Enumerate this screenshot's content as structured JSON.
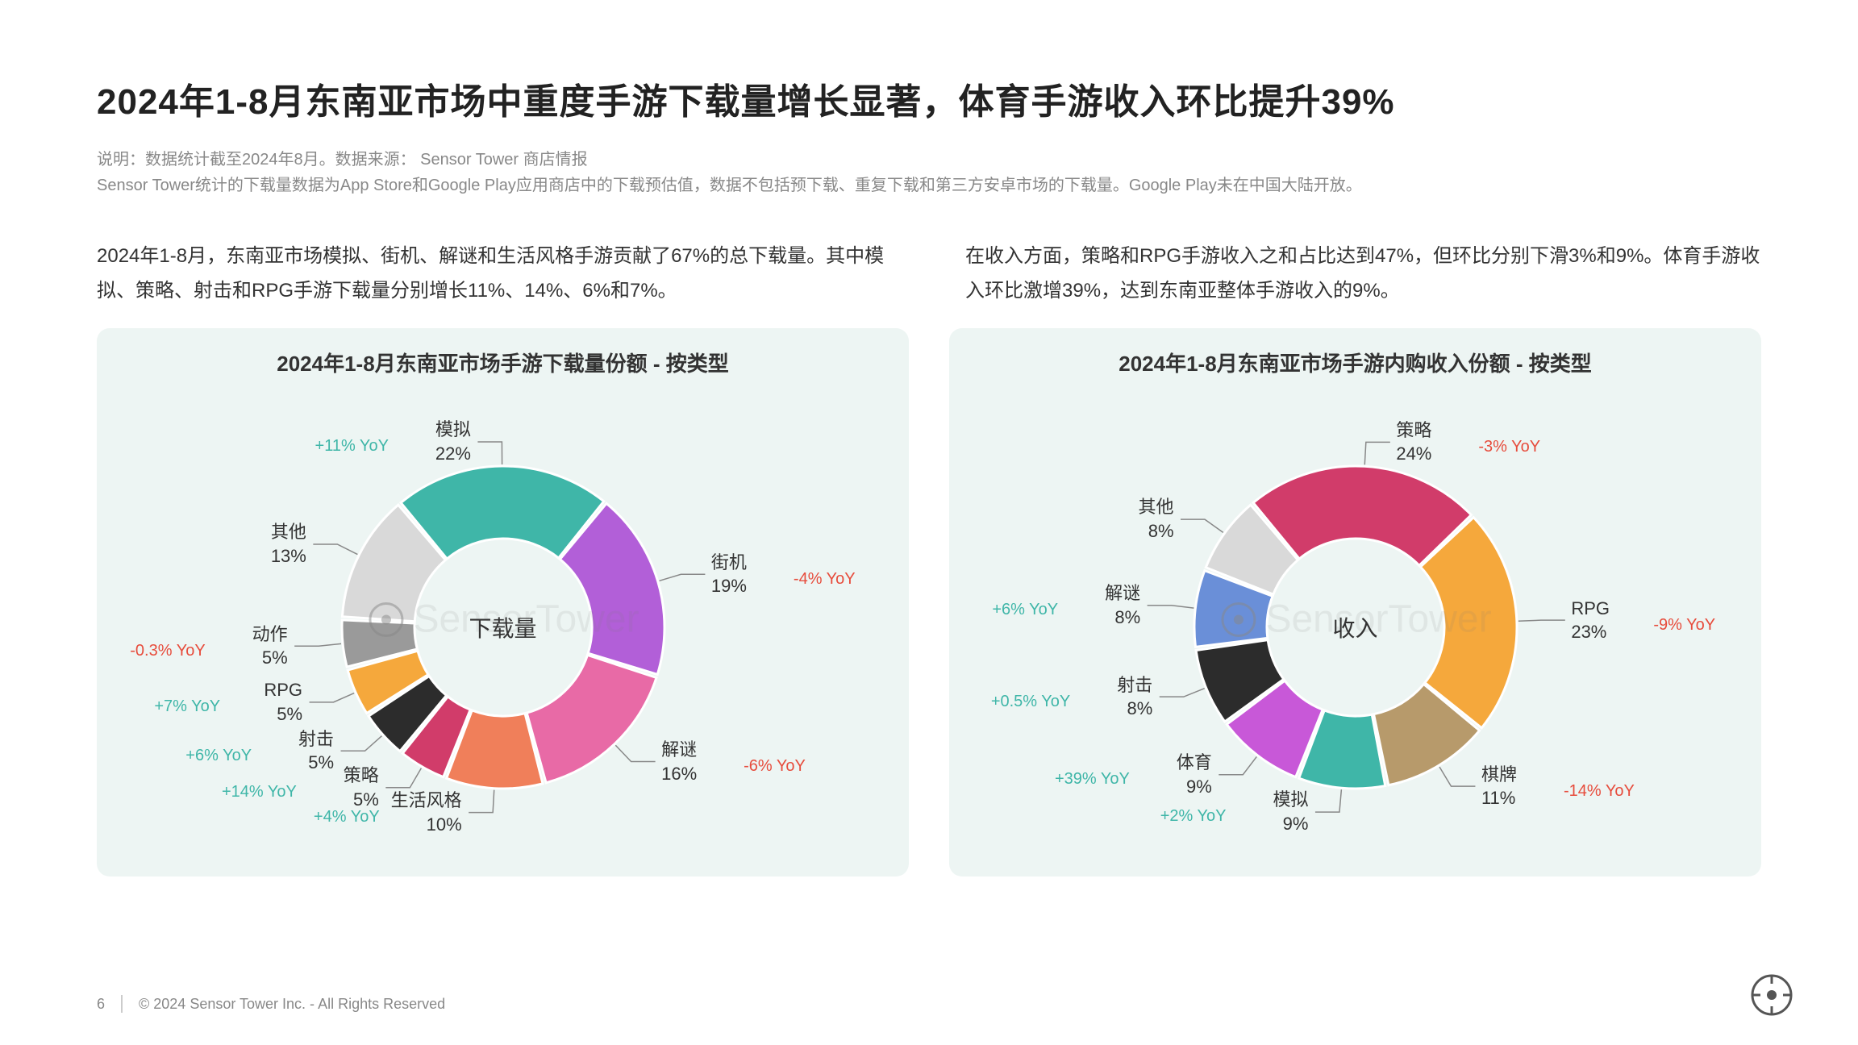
{
  "title": "2024年1-8月东南亚市场中重度手游下载量增长显著，体育手游收入环比提升39%",
  "subtitle_line1": "说明：数据统计截至2024年8月。数据来源： Sensor Tower 商店情报",
  "subtitle_line2": "Sensor Tower统计的下载量数据为App Store和Google Play应用商店中的下载预估值，数据不包括预下载、重复下载和第三方安卓市场的下载量。Google Play未在中国大陆开放。",
  "body_left": "2024年1-8月，东南亚市场模拟、街机、解谜和生活风格手游贡献了67%的总下载量。其中模拟、策略、射击和RPG手游下载量分别增长11%、14%、6%和7%。",
  "body_right": "在收入方面，策略和RPG手游收入之和占比达到47%，但环比分别下滑3%和9%。体育手游收入环比激增39%，达到东南亚整体手游收入的9%。",
  "watermark_text": "SensorTower",
  "page_number": "6",
  "copyright": "© 2024 Sensor Tower Inc. - All Rights Reserved",
  "chart1": {
    "title": "2024年1-8月东南亚市场手游下载量份额 - 按类型",
    "center_label": "下载量",
    "inner_radius": 110,
    "outer_radius": 200,
    "slices": [
      {
        "name": "模拟",
        "pct": 22,
        "color": "#3fb6a8",
        "yoy": "+11% YoY",
        "yoy_sign": "pos"
      },
      {
        "name": "街机",
        "pct": 19,
        "color": "#b25fd8",
        "yoy": "-4% YoY",
        "yoy_sign": "neg"
      },
      {
        "name": "解谜",
        "pct": 16,
        "color": "#e86aa6",
        "yoy": "-6% YoY",
        "yoy_sign": "neg"
      },
      {
        "name": "生活风格",
        "pct": 10,
        "color": "#f07f5a",
        "yoy": "+4% YoY",
        "yoy_sign": "pos"
      },
      {
        "name": "策略",
        "pct": 5,
        "color": "#d13c6a",
        "yoy": "+14% YoY",
        "yoy_sign": "pos"
      },
      {
        "name": "射击",
        "pct": 5,
        "color": "#2c2c2c",
        "yoy": "+6% YoY",
        "yoy_sign": "pos"
      },
      {
        "name": "RPG",
        "pct": 5,
        "color": "#f5a83c",
        "yoy": "+7% YoY",
        "yoy_sign": "pos"
      },
      {
        "name": "动作",
        "pct": 5,
        "color": "#9a9a9a",
        "yoy": "-0.3% YoY",
        "yoy_sign": "neg"
      },
      {
        "name": "其他",
        "pct": 13,
        "color": "#d9d9d9",
        "yoy": "",
        "yoy_sign": ""
      }
    ]
  },
  "chart2": {
    "title": "2024年1-8月东南亚市场手游内购收入份额 - 按类型",
    "center_label": "收入",
    "inner_radius": 110,
    "outer_radius": 200,
    "slices": [
      {
        "name": "策略",
        "pct": 24,
        "color": "#d13c6a",
        "yoy": "-3% YoY",
        "yoy_sign": "neg"
      },
      {
        "name": "RPG",
        "pct": 23,
        "color": "#f5a83c",
        "yoy": "-9% YoY",
        "yoy_sign": "neg"
      },
      {
        "name": "棋牌",
        "pct": 11,
        "color": "#b79a6b",
        "yoy": "-14% YoY",
        "yoy_sign": "neg"
      },
      {
        "name": "模拟",
        "pct": 9,
        "color": "#3fb6a8",
        "yoy": "+2% YoY",
        "yoy_sign": "pos"
      },
      {
        "name": "体育",
        "pct": 9,
        "color": "#c858d8",
        "yoy": "+39% YoY",
        "yoy_sign": "pos"
      },
      {
        "name": "射击",
        "pct": 8,
        "color": "#2c2c2c",
        "yoy": "+0.5% YoY",
        "yoy_sign": "pos"
      },
      {
        "name": "解谜",
        "pct": 8,
        "color": "#6a8fd8",
        "yoy": "+6% YoY",
        "yoy_sign": "pos"
      },
      {
        "name": "其他",
        "pct": 8,
        "color": "#d9d9d9",
        "yoy": "",
        "yoy_sign": ""
      }
    ]
  }
}
